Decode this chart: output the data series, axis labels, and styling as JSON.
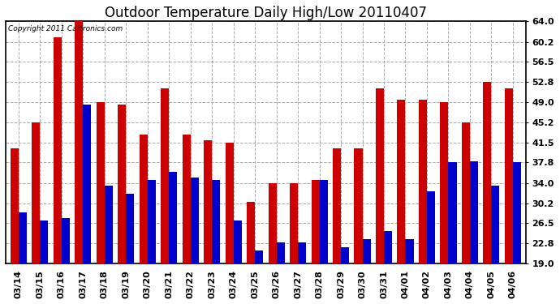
{
  "title": "Outdoor Temperature Daily High/Low 20110407",
  "copyright_text": "Copyright 2011 Cartronics.com",
  "dates": [
    "03/14",
    "03/15",
    "03/16",
    "03/17",
    "03/18",
    "03/19",
    "03/20",
    "03/21",
    "03/22",
    "03/23",
    "03/24",
    "03/25",
    "03/26",
    "03/27",
    "03/28",
    "03/29",
    "03/30",
    "03/31",
    "04/01",
    "04/02",
    "04/03",
    "04/04",
    "04/05",
    "04/06"
  ],
  "highs": [
    40.5,
    45.2,
    61.0,
    64.0,
    49.0,
    48.5,
    43.0,
    51.5,
    43.0,
    42.0,
    41.5,
    30.5,
    34.0,
    34.0,
    34.5,
    40.5,
    40.5,
    51.5,
    49.5,
    49.5,
    49.0,
    45.2,
    52.8,
    51.5
  ],
  "lows": [
    28.5,
    27.0,
    27.5,
    48.5,
    33.5,
    32.0,
    34.5,
    36.0,
    35.0,
    34.5,
    27.0,
    21.5,
    23.0,
    23.0,
    34.5,
    22.0,
    23.5,
    25.0,
    23.5,
    32.5,
    37.8,
    38.0,
    33.5,
    37.8
  ],
  "high_color": "#cc0000",
  "low_color": "#0000cc",
  "bg_color": "#ffffff",
  "grid_color": "#aaaaaa",
  "title_fontsize": 12,
  "tick_fontsize": 8,
  "ymin": 19.0,
  "ymax": 64.0,
  "yticks": [
    19.0,
    22.8,
    26.5,
    30.2,
    34.0,
    37.8,
    41.5,
    45.2,
    49.0,
    52.8,
    56.5,
    60.2,
    64.0
  ]
}
